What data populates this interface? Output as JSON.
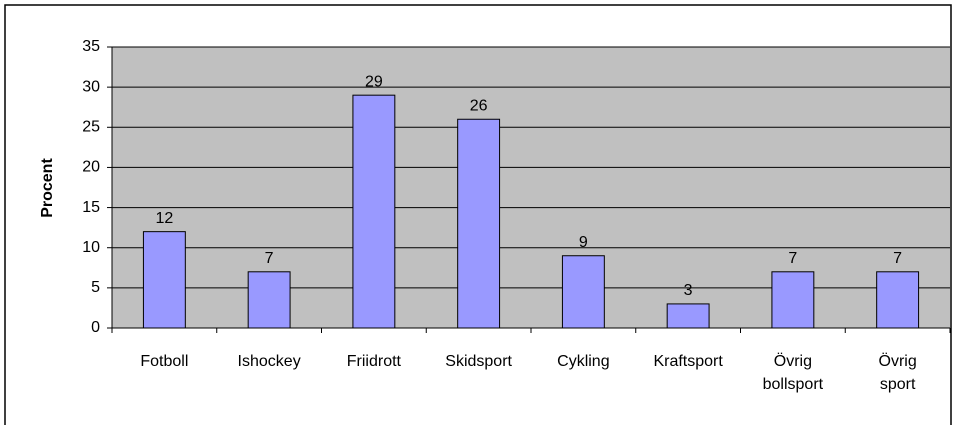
{
  "chart_data": {
    "type": "bar",
    "y_label": "Procent",
    "categories": [
      "Fotboll",
      "Ishockey",
      "Friidrott",
      "Skidsport",
      "Cykling",
      "Kraftsport",
      "Övrig bollsport",
      "Övrig sport"
    ],
    "values": [
      12,
      7,
      29,
      26,
      9,
      3,
      7,
      7
    ],
    "color": "#9999ff",
    "ylim": [
      0,
      35
    ],
    "yticks": [
      0,
      5,
      10,
      15,
      20,
      25,
      30,
      35
    ],
    "grid": true
  }
}
